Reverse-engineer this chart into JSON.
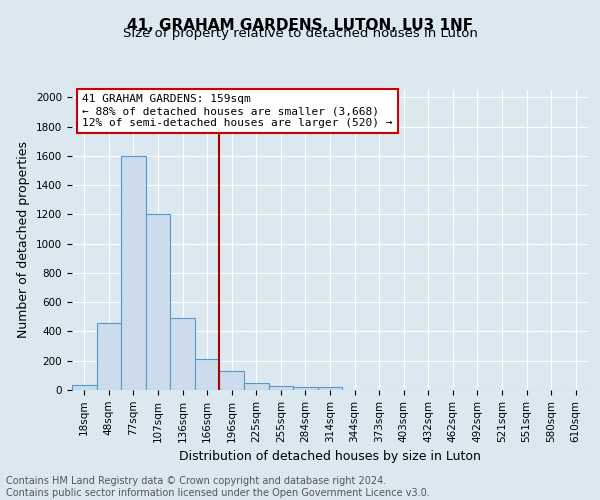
{
  "title": "41, GRAHAM GARDENS, LUTON, LU3 1NF",
  "subtitle": "Size of property relative to detached houses in Luton",
  "xlabel": "Distribution of detached houses by size in Luton",
  "ylabel": "Number of detached properties",
  "footnote1": "Contains HM Land Registry data © Crown copyright and database right 2024.",
  "footnote2": "Contains public sector information licensed under the Open Government Licence v3.0.",
  "bin_labels": [
    "18sqm",
    "48sqm",
    "77sqm",
    "107sqm",
    "136sqm",
    "166sqm",
    "196sqm",
    "225sqm",
    "255sqm",
    "284sqm",
    "314sqm",
    "344sqm",
    "373sqm",
    "403sqm",
    "432sqm",
    "462sqm",
    "492sqm",
    "521sqm",
    "551sqm",
    "580sqm",
    "610sqm"
  ],
  "bar_values": [
    35,
    460,
    1600,
    1200,
    490,
    210,
    130,
    45,
    30,
    22,
    18,
    0,
    0,
    0,
    0,
    0,
    0,
    0,
    0,
    0,
    0
  ],
  "bar_color": "#ccdcec",
  "bar_edge_color": "#5599cc",
  "vline_x": 5.5,
  "vline_color": "#aa0000",
  "annotation_line1": "41 GRAHAM GARDENS: 159sqm",
  "annotation_line2": "← 88% of detached houses are smaller (3,668)",
  "annotation_line3": "12% of semi-detached houses are larger (520) →",
  "annotation_box_color": "#ffffff",
  "annotation_box_edge": "#cc0000",
  "ylim": [
    0,
    2050
  ],
  "yticks": [
    0,
    200,
    400,
    600,
    800,
    1000,
    1200,
    1400,
    1600,
    1800,
    2000
  ],
  "background_color": "#dce8f0",
  "grid_color": "#ffffff",
  "title_fontsize": 11,
  "subtitle_fontsize": 9.5,
  "axis_label_fontsize": 9,
  "tick_fontsize": 7.5,
  "footnote_fontsize": 7
}
